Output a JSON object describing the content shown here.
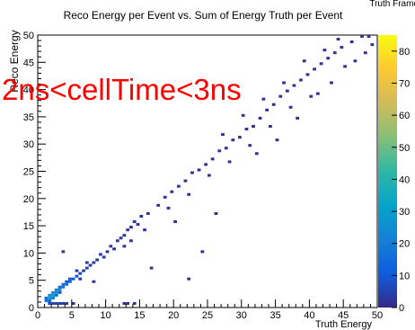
{
  "chart_data": {
    "type": "heatmap",
    "title": "Reco Energy per Event  vs. Sum of Energy Truth per Event",
    "corner_text": "Truth Frame",
    "xlabel": "Truth Energy",
    "ylabel": "Reco Energy",
    "annotation": "2ns<cellTime<3ns",
    "annotation_color": "#ff0000",
    "xlim": [
      0,
      50
    ],
    "ylim": [
      0,
      50
    ],
    "x_ticks": [
      "0",
      "5",
      "10",
      "15",
      "20",
      "25",
      "30",
      "35",
      "40",
      "45",
      "50"
    ],
    "y_ticks": [
      "0",
      "5",
      "10",
      "15",
      "20",
      "25",
      "30",
      "35",
      "40",
      "45",
      "50"
    ],
    "colorbar": {
      "range": [
        0,
        85
      ],
      "ticks": [
        "0",
        "10",
        "20",
        "30",
        "40",
        "50",
        "60",
        "70",
        "80"
      ],
      "palette": [
        "#352a87",
        "#0f5cdd",
        "#1481d6",
        "#06a4ca",
        "#2eb7a4",
        "#87bf77",
        "#d1bb59",
        "#fec832",
        "#f9fb0e"
      ]
    },
    "bin_size": 0.5,
    "correlation": "Reco Energy ≈ Truth Energy, spread widening with energy",
    "bins": [
      {
        "x": 1.5,
        "y": 1.5,
        "count": 30
      },
      {
        "x": 1.5,
        "y": 2.0,
        "count": 24
      },
      {
        "x": 2.0,
        "y": 2.0,
        "count": 28
      },
      {
        "x": 2.0,
        "y": 2.5,
        "count": 22
      },
      {
        "x": 2.5,
        "y": 2.5,
        "count": 26
      },
      {
        "x": 2.5,
        "y": 3.0,
        "count": 20
      },
      {
        "x": 3.0,
        "y": 3.0,
        "count": 22
      },
      {
        "x": 3.0,
        "y": 3.5,
        "count": 16
      },
      {
        "x": 3.5,
        "y": 3.5,
        "count": 18
      },
      {
        "x": 3.5,
        "y": 4.0,
        "count": 14
      },
      {
        "x": 4.0,
        "y": 4.0,
        "count": 15
      },
      {
        "x": 4.0,
        "y": 4.5,
        "count": 11
      },
      {
        "x": 4.5,
        "y": 4.5,
        "count": 12
      },
      {
        "x": 4.5,
        "y": 5.0,
        "count": 9
      },
      {
        "x": 5.0,
        "y": 5.0,
        "count": 10
      },
      {
        "x": 1.0,
        "y": 1.0,
        "count": 18
      },
      {
        "x": 1.0,
        "y": 1.5,
        "count": 14
      },
      {
        "x": 1.5,
        "y": 1.0,
        "count": 12
      },
      {
        "x": 2.0,
        "y": 1.5,
        "count": 16
      },
      {
        "x": 2.5,
        "y": 2.0,
        "count": 14
      },
      {
        "x": 3.0,
        "y": 2.5,
        "count": 12
      },
      {
        "x": 1.5,
        "y": 0.5,
        "count": 6
      },
      {
        "x": 2.0,
        "y": 0.5,
        "count": 5
      },
      {
        "x": 2.5,
        "y": 0.5,
        "count": 6
      },
      {
        "x": 3.0,
        "y": 0.5,
        "count": 5
      },
      {
        "x": 3.5,
        "y": 0.5,
        "count": 4
      },
      {
        "x": 4.0,
        "y": 0.5,
        "count": 3
      },
      {
        "x": 12.5,
        "y": 0.5,
        "count": 2
      },
      {
        "x": 13.0,
        "y": 0.5,
        "count": 1
      },
      {
        "x": 14.0,
        "y": 0.5,
        "count": 2
      },
      {
        "x": 5.5,
        "y": 5.5,
        "count": 7
      },
      {
        "x": 6.0,
        "y": 6.0,
        "count": 6
      },
      {
        "x": 6.5,
        "y": 6.5,
        "count": 5
      },
      {
        "x": 7.0,
        "y": 7.0,
        "count": 5
      },
      {
        "x": 7.5,
        "y": 7.5,
        "count": 4
      },
      {
        "x": 8.0,
        "y": 8.0,
        "count": 4
      },
      {
        "x": 5.5,
        "y": 6.5,
        "count": 4
      },
      {
        "x": 6.0,
        "y": 5.0,
        "count": 3
      },
      {
        "x": 7.0,
        "y": 8.0,
        "count": 3
      },
      {
        "x": 8.5,
        "y": 8.5,
        "count": 3
      },
      {
        "x": 9.0,
        "y": 9.5,
        "count": 3
      },
      {
        "x": 9.5,
        "y": 9.0,
        "count": 3
      },
      {
        "x": 10.0,
        "y": 10.0,
        "count": 3
      },
      {
        "x": 10.5,
        "y": 11.0,
        "count": 3
      },
      {
        "x": 11.0,
        "y": 10.5,
        "count": 2
      },
      {
        "x": 11.5,
        "y": 12.0,
        "count": 3
      },
      {
        "x": 12.0,
        "y": 12.5,
        "count": 3
      },
      {
        "x": 12.5,
        "y": 13.0,
        "count": 2
      },
      {
        "x": 13.0,
        "y": 14.0,
        "count": 3
      },
      {
        "x": 13.5,
        "y": 14.5,
        "count": 2
      },
      {
        "x": 14.0,
        "y": 15.5,
        "count": 2
      },
      {
        "x": 14.5,
        "y": 15.0,
        "count": 2
      },
      {
        "x": 15.0,
        "y": 16.5,
        "count": 2
      },
      {
        "x": 16.0,
        "y": 17.0,
        "count": 2
      },
      {
        "x": 15.5,
        "y": 14.0,
        "count": 2
      },
      {
        "x": 13.5,
        "y": 12.0,
        "count": 2
      },
      {
        "x": 3.5,
        "y": 10.0,
        "count": 1
      },
      {
        "x": 8.0,
        "y": 4.5,
        "count": 1
      },
      {
        "x": 12.5,
        "y": 11.0,
        "count": 1
      },
      {
        "x": 16.5,
        "y": 7.0,
        "count": 1
      },
      {
        "x": 22.0,
        "y": 5.0,
        "count": 1
      },
      {
        "x": 24.0,
        "y": 10.0,
        "count": 1
      },
      {
        "x": 5.0,
        "y": 0.5,
        "count": 1
      },
      {
        "x": 17.5,
        "y": 18.5,
        "count": 2
      },
      {
        "x": 18.5,
        "y": 20.0,
        "count": 2
      },
      {
        "x": 19.5,
        "y": 21.0,
        "count": 2
      },
      {
        "x": 20.5,
        "y": 22.0,
        "count": 2
      },
      {
        "x": 21.5,
        "y": 23.0,
        "count": 1
      },
      {
        "x": 22.5,
        "y": 24.5,
        "count": 2
      },
      {
        "x": 23.5,
        "y": 25.0,
        "count": 1
      },
      {
        "x": 24.5,
        "y": 26.0,
        "count": 2
      },
      {
        "x": 25.5,
        "y": 27.0,
        "count": 1
      },
      {
        "x": 26.5,
        "y": 28.5,
        "count": 2
      },
      {
        "x": 27.5,
        "y": 29.0,
        "count": 1
      },
      {
        "x": 28.5,
        "y": 30.5,
        "count": 2
      },
      {
        "x": 29.5,
        "y": 31.0,
        "count": 1
      },
      {
        "x": 30.5,
        "y": 32.5,
        "count": 2
      },
      {
        "x": 31.5,
        "y": 33.0,
        "count": 1
      },
      {
        "x": 32.5,
        "y": 34.5,
        "count": 1
      },
      {
        "x": 33.5,
        "y": 36.0,
        "count": 1
      },
      {
        "x": 34.5,
        "y": 37.0,
        "count": 1
      },
      {
        "x": 35.5,
        "y": 38.5,
        "count": 1
      },
      {
        "x": 36.5,
        "y": 39.5,
        "count": 1
      },
      {
        "x": 37.5,
        "y": 40.5,
        "count": 1
      },
      {
        "x": 38.5,
        "y": 41.5,
        "count": 1
      },
      {
        "x": 39.5,
        "y": 42.5,
        "count": 1
      },
      {
        "x": 40.5,
        "y": 43.5,
        "count": 1
      },
      {
        "x": 41.5,
        "y": 44.5,
        "count": 1
      },
      {
        "x": 42.5,
        "y": 45.5,
        "count": 1
      },
      {
        "x": 43.5,
        "y": 46.5,
        "count": 1
      },
      {
        "x": 44.5,
        "y": 47.5,
        "count": 1
      },
      {
        "x": 46.0,
        "y": 48.5,
        "count": 1
      },
      {
        "x": 47.5,
        "y": 49.5,
        "count": 1
      },
      {
        "x": 48.5,
        "y": 49.5,
        "count": 1
      },
      {
        "x": 45.0,
        "y": 44.0,
        "count": 1
      },
      {
        "x": 40.0,
        "y": 38.5,
        "count": 1
      },
      {
        "x": 37.0,
        "y": 36.5,
        "count": 1
      },
      {
        "x": 34.0,
        "y": 33.0,
        "count": 1
      },
      {
        "x": 31.0,
        "y": 29.5,
        "count": 1
      },
      {
        "x": 28.0,
        "y": 26.5,
        "count": 1
      },
      {
        "x": 25.0,
        "y": 24.0,
        "count": 1
      },
      {
        "x": 22.0,
        "y": 20.5,
        "count": 1
      },
      {
        "x": 19.0,
        "y": 18.0,
        "count": 1
      },
      {
        "x": 27.0,
        "y": 31.5,
        "count": 1
      },
      {
        "x": 30.0,
        "y": 35.0,
        "count": 1
      },
      {
        "x": 33.0,
        "y": 38.0,
        "count": 1
      },
      {
        "x": 36.0,
        "y": 41.0,
        "count": 1
      },
      {
        "x": 39.0,
        "y": 45.0,
        "count": 1
      },
      {
        "x": 42.0,
        "y": 47.0,
        "count": 1
      },
      {
        "x": 44.0,
        "y": 49.0,
        "count": 1
      },
      {
        "x": 49.0,
        "y": 48.0,
        "count": 1
      },
      {
        "x": 46.5,
        "y": 45.0,
        "count": 1
      },
      {
        "x": 48.0,
        "y": 46.5,
        "count": 1
      },
      {
        "x": 26.0,
        "y": 17.0,
        "count": 1
      },
      {
        "x": 32.0,
        "y": 28.0,
        "count": 1
      },
      {
        "x": 35.0,
        "y": 30.5,
        "count": 1
      },
      {
        "x": 38.0,
        "y": 34.5,
        "count": 1
      },
      {
        "x": 41.0,
        "y": 39.0,
        "count": 1
      },
      {
        "x": 43.0,
        "y": 41.0,
        "count": 1
      },
      {
        "x": 20.0,
        "y": 15.5,
        "count": 1
      }
    ]
  }
}
